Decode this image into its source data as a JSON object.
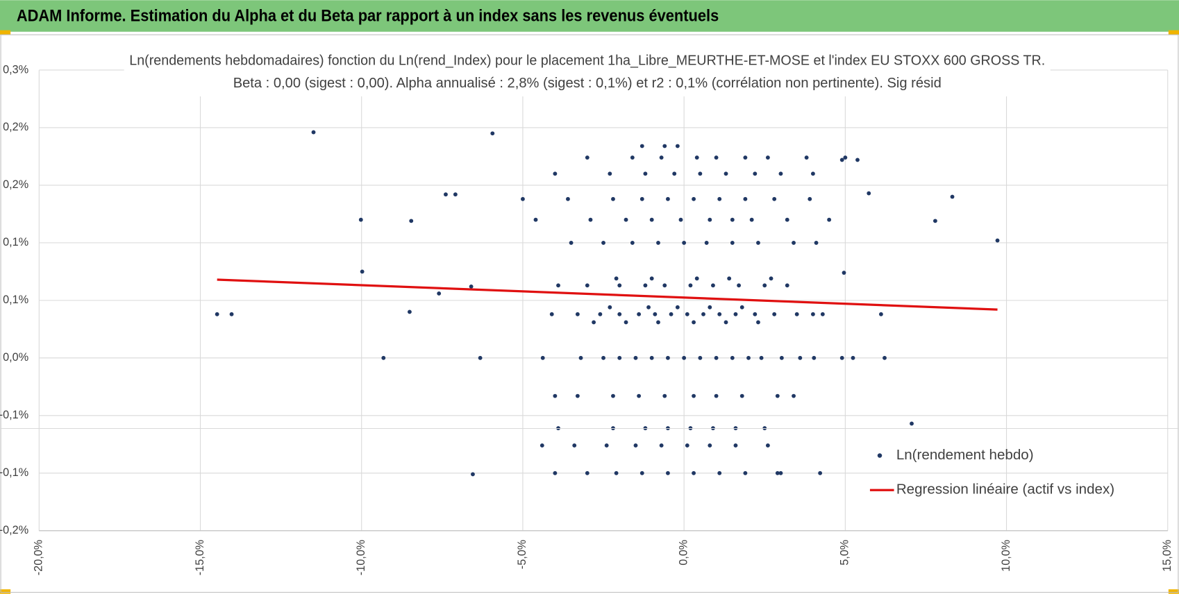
{
  "header": {
    "title": "ADAM Informe. Estimation du Alpha et du Beta par rapport à un index sans les revenus éventuels"
  },
  "chart_data": {
    "type": "scatter",
    "title": "Ln(rendements hebdomadaires) fonction du Ln(rend_Index) pour le placement 1ha_Libre_MEURTHE-ET-MOSE et l'index EU STOXX 600 GROSS TR.",
    "subtitle": "Beta : 0,00 (sigest : 0,00). Alpha annualisé : 2,8% (sigest : 0,1%) et r2 : 0,1% (corrélation non pertinente). Sig résid",
    "xlim": [
      -20,
      15
    ],
    "xticks": [
      {
        "value": -20,
        "label": "-20,0%"
      },
      {
        "value": -15,
        "label": "-15,0%"
      },
      {
        "value": -10,
        "label": "-10,0%"
      },
      {
        "value": -5,
        "label": "-5,0%"
      },
      {
        "value": 0,
        "label": "0,0%"
      },
      {
        "value": 5,
        "label": "5,0%"
      },
      {
        "value": 10,
        "label": "10,0%"
      },
      {
        "value": 15,
        "label": "15,0%"
      }
    ],
    "ylim": [
      -0.15,
      0.25
    ],
    "yticks": [
      {
        "value": 0.25,
        "label": "0,3%"
      },
      {
        "value": 0.2,
        "label": "0,2%"
      },
      {
        "value": 0.15,
        "label": "0,2%"
      },
      {
        "value": 0.1,
        "label": "0,1%"
      },
      {
        "value": 0.05,
        "label": "0,1%"
      },
      {
        "value": 0,
        "label": "0,0%"
      },
      {
        "value": -0.05,
        "label": "-0,1%"
      },
      {
        "value": -0.1,
        "label": "-0,1%"
      },
      {
        "value": -0.15,
        "label": "-0,2%"
      }
    ],
    "grid": true,
    "legend": "lower right",
    "series": [
      {
        "name": "Ln(rendement hebdo)",
        "type": "scatter",
        "color": "#203864",
        "x": [
          -14.48,
          -14.03,
          -11.49,
          -10.02,
          -9.98,
          -9.32,
          -8.51,
          -8.46,
          -7.6,
          -7.39,
          -7.09,
          -6.6,
          -6.55,
          -6.32,
          -5.94,
          7.06,
          8.32,
          7.79,
          9.72,
          6.22,
          6.11,
          5.73,
          5.38,
          4.9,
          4.96,
          4.22,
          -4.38,
          -3.2,
          -2.5,
          -2.0,
          -1.5,
          -1.0,
          -0.5,
          0,
          0.5,
          1.0,
          1.5,
          2.0,
          2.4,
          3.03,
          3.6,
          4.03,
          4.9,
          5.24,
          -4.1,
          -3.3,
          -2.6,
          -2.0,
          -1.4,
          -0.9,
          -0.4,
          0.1,
          0.6,
          1.1,
          1.6,
          2.2,
          2.8,
          3.5,
          4.0,
          4.3,
          -2.8,
          -1.8,
          -0.8,
          0.3,
          1.3,
          2.3,
          -2.3,
          -1.1,
          -0.2,
          0.8,
          1.8,
          -3.9,
          -3.0,
          -2.0,
          -1.2,
          -0.6,
          0.2,
          0.9,
          1.7,
          2.5,
          3.2,
          -2.1,
          -1.0,
          0.4,
          1.4,
          2.7,
          -3.5,
          -2.5,
          -1.6,
          -0.8,
          0,
          0.7,
          1.5,
          2.3,
          3.4,
          4.1,
          -4.6,
          -2.9,
          -1.8,
          -1.0,
          -0.1,
          0.8,
          1.5,
          2.1,
          3.2,
          4.5,
          -5.0,
          -3.6,
          -2.2,
          -1.3,
          -0.5,
          0.3,
          1.1,
          1.9,
          2.8,
          3.9,
          -4.0,
          -2.3,
          -1.2,
          -0.3,
          0.5,
          1.3,
          2.2,
          3.0,
          4.0,
          -3.0,
          -1.6,
          -0.7,
          0.4,
          1.0,
          1.9,
          2.6,
          3.8,
          5.0,
          -1.3,
          -0.6,
          -0.2,
          -4.0,
          -3.3,
          -2.2,
          -1.4,
          -0.6,
          0.3,
          1.0,
          1.8,
          2.9,
          3.4,
          -3.9,
          -2.2,
          -1.2,
          -0.5,
          0.2,
          0.9,
          1.6,
          2.5,
          -4.4,
          -3.4,
          -2.4,
          -1.5,
          -0.7,
          0.1,
          0.8,
          1.6,
          2.6,
          -4.0,
          -3.0,
          -2.1,
          -1.3,
          -0.5,
          0.3,
          1.1,
          1.9,
          2.9,
          3.0
        ],
        "values": [
          0.038,
          0.038,
          0.196,
          0.12,
          0.075,
          0,
          0.04,
          0.119,
          0.056,
          0.142,
          0.142,
          0.062,
          -0.101,
          0,
          0.195,
          -0.057,
          0.14,
          0.119,
          0.102,
          0,
          0.038,
          0.143,
          0.172,
          0.172,
          0.074,
          -0.1,
          0,
          0,
          0,
          0,
          0,
          0,
          0,
          0,
          0,
          0,
          0,
          0,
          0,
          0,
          0,
          0,
          0,
          0,
          0.038,
          0.038,
          0.038,
          0.038,
          0.038,
          0.038,
          0.038,
          0.038,
          0.038,
          0.038,
          0.038,
          0.038,
          0.038,
          0.038,
          0.038,
          0.038,
          0.031,
          0.031,
          0.031,
          0.031,
          0.031,
          0.031,
          0.044,
          0.044,
          0.044,
          0.044,
          0.044,
          0.063,
          0.063,
          0.063,
          0.063,
          0.063,
          0.063,
          0.063,
          0.063,
          0.063,
          0.063,
          0.069,
          0.069,
          0.069,
          0.069,
          0.069,
          0.1,
          0.1,
          0.1,
          0.1,
          0.1,
          0.1,
          0.1,
          0.1,
          0.1,
          0.1,
          0.12,
          0.12,
          0.12,
          0.12,
          0.12,
          0.12,
          0.12,
          0.12,
          0.12,
          0.12,
          0.138,
          0.138,
          0.138,
          0.138,
          0.138,
          0.138,
          0.138,
          0.138,
          0.138,
          0.138,
          0.16,
          0.16,
          0.16,
          0.16,
          0.16,
          0.16,
          0.16,
          0.16,
          0.16,
          0.174,
          0.174,
          0.174,
          0.174,
          0.174,
          0.174,
          0.174,
          0.174,
          0.174,
          0.184,
          0.184,
          0.184,
          -0.033,
          -0.033,
          -0.033,
          -0.033,
          -0.033,
          -0.033,
          -0.033,
          -0.033,
          -0.033,
          -0.033,
          -0.061,
          -0.061,
          -0.061,
          -0.061,
          -0.061,
          -0.061,
          -0.061,
          -0.061,
          -0.076,
          -0.076,
          -0.076,
          -0.076,
          -0.076,
          -0.076,
          -0.076,
          -0.076,
          -0.076,
          -0.1,
          -0.1,
          -0.1,
          -0.1,
          -0.1,
          -0.1,
          -0.1,
          -0.1,
          -0.1,
          -0.1
        ]
      },
      {
        "name": "Regression linéaire (actif vs index)",
        "type": "line",
        "color": "#e01010",
        "x": [
          -14.48,
          9.72
        ],
        "values": [
          0.068,
          0.042
        ]
      }
    ]
  }
}
